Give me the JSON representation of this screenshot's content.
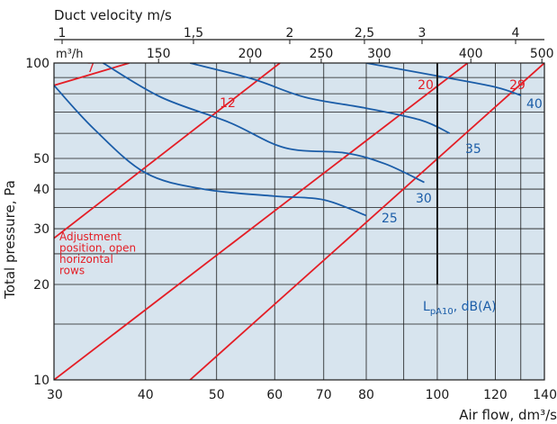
{
  "chart_data": {
    "type": "line",
    "top_axis_title": "Duct velocity m/s",
    "top_velocity_ticks": [
      "1",
      "1,5",
      "2",
      "2,5",
      "3",
      "4"
    ],
    "m3h_unit": "m³/h",
    "m3h_ticks": [
      150,
      200,
      250,
      300,
      400,
      500
    ],
    "x_label": "Air flow, dm³/s",
    "y_label": "Total pressure, Pa",
    "x_scale": "log",
    "y_scale": "log",
    "x_range": [
      30,
      140
    ],
    "y_range": [
      10,
      100
    ],
    "x_ticks": [
      30,
      40,
      50,
      60,
      70,
      80,
      100,
      120,
      140
    ],
    "y_ticks": [
      10,
      20,
      30,
      40,
      50,
      100
    ],
    "grid": true,
    "adjustment_note": [
      "Adjustment",
      "position, open",
      "horizontal",
      "rows"
    ],
    "adjustment_lines": [
      {
        "label": "7",
        "points": [
          [
            30,
            85
          ],
          [
            38,
            100
          ]
        ]
      },
      {
        "label": "12",
        "points": [
          [
            30,
            28
          ],
          [
            61,
            100
          ]
        ]
      },
      {
        "label": "20",
        "points": [
          [
            30,
            10
          ],
          [
            110,
            100
          ]
        ]
      },
      {
        "label": "29",
        "points": [
          [
            46,
            10
          ],
          [
            140,
            100
          ]
        ]
      }
    ],
    "sound_curves": [
      {
        "label": "25",
        "points": [
          [
            30,
            85
          ],
          [
            34,
            62
          ],
          [
            40,
            45
          ],
          [
            48,
            40
          ],
          [
            60,
            38
          ],
          [
            70,
            37
          ],
          [
            80,
            33
          ]
        ]
      },
      {
        "label": "30",
        "points": [
          [
            35,
            100
          ],
          [
            42,
            78
          ],
          [
            52,
            65
          ],
          [
            62,
            54
          ],
          [
            75,
            52
          ],
          [
            85,
            48
          ],
          [
            96,
            42
          ]
        ]
      },
      {
        "label": "35",
        "points": [
          [
            46,
            100
          ],
          [
            56,
            89
          ],
          [
            66,
            78
          ],
          [
            80,
            72
          ],
          [
            95,
            66
          ],
          [
            104,
            60
          ]
        ]
      },
      {
        "label": "40",
        "points": [
          [
            80,
            100
          ],
          [
            100,
            91
          ],
          [
            120,
            84
          ],
          [
            130,
            79
          ]
        ]
      }
    ],
    "lpa_label_main": "L",
    "lpa_label_sub": "pA10",
    "lpa_label_unit": ", dB(A)",
    "lpa_marker_x": 100
  }
}
